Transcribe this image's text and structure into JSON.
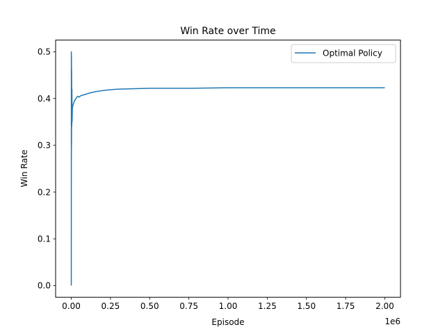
{
  "chart_data": {
    "type": "line",
    "title": "Win Rate over Time",
    "xlabel": "Episode",
    "ylabel": "Win Rate",
    "x_offset_text": "1e6",
    "xlim": [
      -0.1,
      2.1
    ],
    "ylim": [
      -0.025,
      0.525
    ],
    "x_ticks": [
      0.0,
      0.25,
      0.5,
      0.75,
      1.0,
      1.25,
      1.5,
      1.75,
      2.0
    ],
    "x_tick_labels": [
      "0.00",
      "0.25",
      "0.50",
      "0.75",
      "1.00",
      "1.25",
      "1.50",
      "1.75",
      "2.00"
    ],
    "y_ticks": [
      0.0,
      0.1,
      0.2,
      0.3,
      0.4,
      0.5
    ],
    "y_tick_labels": [
      "0.0",
      "0.1",
      "0.2",
      "0.3",
      "0.4",
      "0.5"
    ],
    "grid": false,
    "legend_position": "top-right",
    "series": [
      {
        "name": "Optimal Policy",
        "color": "#1f77b4",
        "x": [
          0.0,
          0.0003,
          0.0006,
          0.001,
          0.0015,
          0.002,
          0.003,
          0.004,
          0.005,
          0.007,
          0.01,
          0.015,
          0.02,
          0.03,
          0.04,
          0.05,
          0.06,
          0.08,
          0.1,
          0.13,
          0.16,
          0.2,
          0.25,
          0.3,
          0.4,
          0.5,
          0.6,
          0.75,
          1.0,
          1.25,
          1.5,
          1.75,
          2.0
        ],
        "y": [
          0.0,
          0.5,
          0.27,
          0.49,
          0.3,
          0.46,
          0.34,
          0.42,
          0.35,
          0.38,
          0.385,
          0.39,
          0.395,
          0.4,
          0.405,
          0.403,
          0.406,
          0.408,
          0.41,
          0.413,
          0.415,
          0.417,
          0.419,
          0.42,
          0.421,
          0.422,
          0.422,
          0.422,
          0.423,
          0.423,
          0.423,
          0.423,
          0.423
        ]
      }
    ]
  }
}
